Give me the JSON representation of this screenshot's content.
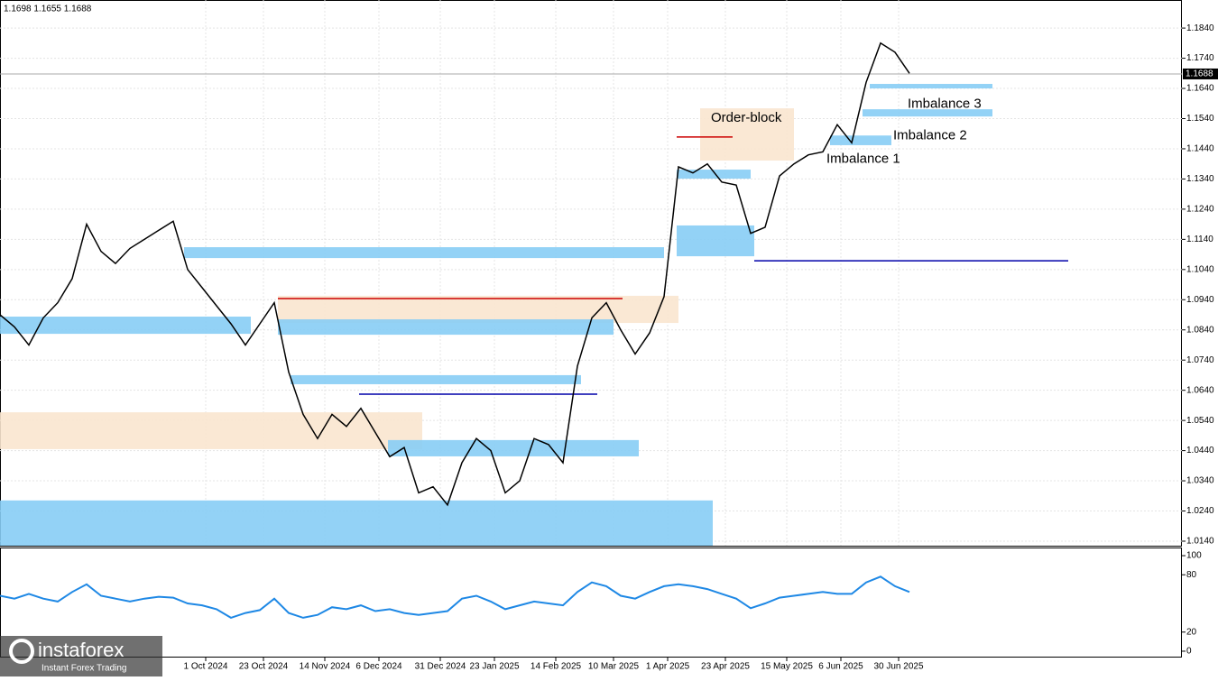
{
  "header": "1.1698 1.1655 1.1688",
  "logo": {
    "name": "instaforex",
    "tagline": "Instant Forex Trading"
  },
  "chart_data": [
    {
      "type": "line",
      "last_price": 1.1688,
      "color": "#000000",
      "x": [
        0,
        4,
        8,
        12,
        16,
        20,
        24,
        28,
        32,
        36,
        40,
        44,
        48,
        52,
        56,
        60,
        64,
        68,
        72,
        76,
        80,
        84,
        88,
        92,
        96,
        100,
        104,
        108,
        112,
        116,
        120,
        124,
        128,
        132,
        136,
        140,
        144,
        148,
        152,
        156,
        160,
        164,
        168,
        172,
        176,
        180,
        184,
        188,
        192,
        196,
        200,
        204,
        208,
        212,
        216,
        220,
        224,
        228,
        232,
        236,
        240,
        244,
        248,
        252
      ],
      "values": [
        1.089,
        1.085,
        1.079,
        1.088,
        1.093,
        1.101,
        1.119,
        1.11,
        1.106,
        1.111,
        1.114,
        1.117,
        1.12,
        1.104,
        1.098,
        1.092,
        1.086,
        1.079,
        1.086,
        1.093,
        1.07,
        1.056,
        1.048,
        1.056,
        1.052,
        1.058,
        1.05,
        1.042,
        1.045,
        1.03,
        1.032,
        1.026,
        1.04,
        1.048,
        1.044,
        1.03,
        1.034,
        1.048,
        1.046,
        1.04,
        1.072,
        1.088,
        1.093,
        1.084,
        1.076,
        1.083,
        1.095,
        1.138,
        1.136,
        1.139,
        1.133,
        1.132,
        1.116,
        1.118,
        1.135,
        1.139,
        1.142,
        1.143,
        1.152,
        1.146,
        1.166,
        1.179,
        1.176,
        1.169
      ],
      "xlim": [
        0,
        327.5
      ],
      "ylim": [
        1.0125,
        1.1927
      ],
      "xticks": [
        {
          "value": 57,
          "label": "1 Oct 2024"
        },
        {
          "value": 73,
          "label": "23 Oct 2024"
        },
        {
          "value": 90,
          "label": "14 Nov 2024"
        },
        {
          "value": 105,
          "label": "6 Dec 2024"
        },
        {
          "value": 122,
          "label": "31 Dec 2024"
        },
        {
          "value": 137,
          "label": "23 Jan 2025"
        },
        {
          "value": 154,
          "label": "14 Feb 2025"
        },
        {
          "value": 170,
          "label": "10 Mar 2025"
        },
        {
          "value": 185,
          "label": "1 Apr 2025"
        },
        {
          "value": 201,
          "label": "23 Apr 2025"
        },
        {
          "value": 218,
          "label": "15 May 2025"
        },
        {
          "value": 233,
          "label": "6 Jun 2025"
        },
        {
          "value": 249,
          "label": "30 Jun 2025"
        }
      ],
      "yticks": [
        {
          "value": 1.184,
          "label": "1.1840"
        },
        {
          "value": 1.174,
          "label": "1.1740"
        },
        {
          "value": 1.164,
          "label": "1.1640"
        },
        {
          "value": 1.154,
          "label": "1.1540"
        },
        {
          "value": 1.144,
          "label": "1.1440"
        },
        {
          "value": 1.134,
          "label": "1.1340"
        },
        {
          "value": 1.124,
          "label": "1.1240"
        },
        {
          "value": 1.114,
          "label": "1.1140"
        },
        {
          "value": 1.104,
          "label": "1.1040"
        },
        {
          "value": 1.094,
          "label": "1.0940"
        },
        {
          "value": 1.084,
          "label": "1.0840"
        },
        {
          "value": 1.074,
          "label": "1.0740"
        },
        {
          "value": 1.064,
          "label": "1.0640"
        },
        {
          "value": 1.054,
          "label": "1.0540"
        },
        {
          "value": 1.044,
          "label": "1.0440"
        },
        {
          "value": 1.034,
          "label": "1.0340"
        },
        {
          "value": 1.024,
          "label": "1.0240"
        },
        {
          "value": 1.014,
          "label": "1.0140"
        }
      ],
      "grid": true,
      "zones": [
        {
          "x": [
            0,
            197.5
          ],
          "range": [
            1.0125,
            1.0275
          ],
          "color": "#87cdf5"
        },
        {
          "x": [
            0,
            117
          ],
          "range": [
            1.0445,
            1.0567
          ],
          "color": "#f9e6cf"
        },
        {
          "x": [
            51,
            184
          ],
          "range": [
            1.1078,
            1.1114
          ],
          "color": "#87cdf5"
        },
        {
          "x": [
            0,
            69.5
          ],
          "range": [
            1.0827,
            1.0884
          ],
          "color": "#87cdf5"
        },
        {
          "x": [
            77,
            188
          ],
          "range": [
            1.0863,
            1.0953
          ],
          "color": "#f9e6cf"
        },
        {
          "x": [
            77,
            170
          ],
          "range": [
            1.0824,
            1.0875
          ],
          "color": "#87cdf5"
        },
        {
          "x": [
            80.5,
            161
          ],
          "range": [
            1.066,
            1.069
          ],
          "color": "#87cdf5"
        },
        {
          "x": [
            107.5,
            177
          ],
          "range": [
            1.0421,
            1.0475
          ],
          "color": "#87cdf5"
        },
        {
          "x": [
            194,
            220
          ],
          "range": [
            1.1401,
            1.1574
          ],
          "color": "#f9e6cf"
        },
        {
          "x": [
            187.5,
            209
          ],
          "range": [
            1.1084,
            1.1186
          ],
          "color": "#87cdf5"
        },
        {
          "x": [
            187.5,
            208
          ],
          "range": [
            1.1341,
            1.1371
          ],
          "color": "#87cdf5"
        },
        {
          "x": [
            230,
            247
          ],
          "range": [
            1.1452,
            1.1484
          ],
          "color": "#87cdf5"
        },
        {
          "x": [
            239,
            275
          ],
          "range": [
            1.1547,
            1.1571
          ],
          "color": "#87cdf5"
        },
        {
          "x": [
            241,
            275
          ],
          "range": [
            1.164,
            1.1655
          ],
          "color": "#87cdf5"
        }
      ],
      "levels": [
        {
          "x": [
            209,
            296
          ],
          "price": 1.1069,
          "color": "#0000aa"
        },
        {
          "x": [
            77,
            172.5
          ],
          "price": 1.0944,
          "color": "#cc0000"
        },
        {
          "x": [
            99.5,
            165.5
          ],
          "price": 1.0627,
          "color": "#0000aa"
        },
        {
          "x": [
            187.5,
            203
          ],
          "price": 1.1479,
          "color": "#cc0000"
        }
      ],
      "annotations": [
        {
          "text": "Order-block",
          "x": 197,
          "price": 1.1542
        },
        {
          "text": "Imbalance 1",
          "x": 229,
          "price": 1.1406
        },
        {
          "text": "Imbalance 2",
          "x": 247.5,
          "price": 1.1483
        },
        {
          "text": "Imbalance 3",
          "x": 251.5,
          "price": 1.1587
        }
      ]
    },
    {
      "type": "line",
      "color": "#1e88e5",
      "x": [
        0,
        4,
        8,
        12,
        16,
        20,
        24,
        28,
        32,
        36,
        40,
        44,
        48,
        52,
        56,
        60,
        64,
        68,
        72,
        76,
        80,
        84,
        88,
        92,
        96,
        100,
        104,
        108,
        112,
        116,
        120,
        124,
        128,
        132,
        136,
        140,
        144,
        148,
        152,
        156,
        160,
        164,
        168,
        172,
        176,
        180,
        184,
        188,
        192,
        196,
        200,
        204,
        208,
        212,
        216,
        220,
        224,
        228,
        232,
        236,
        240,
        244,
        248,
        252
      ],
      "values": [
        58,
        55,
        60,
        55,
        52,
        62,
        70,
        58,
        55,
        52,
        55,
        57,
        56,
        50,
        48,
        44,
        35,
        40,
        43,
        55,
        40,
        35,
        38,
        46,
        44,
        48,
        42,
        44,
        40,
        38,
        40,
        42,
        55,
        58,
        52,
        44,
        48,
        52,
        50,
        48,
        62,
        72,
        68,
        58,
        55,
        62,
        68,
        70,
        68,
        65,
        60,
        55,
        45,
        50,
        56,
        58,
        60,
        62,
        60,
        60,
        72,
        78,
        68,
        62
      ],
      "xlim": [
        0,
        327.5
      ],
      "ylim": [
        -5.7,
        105.7
      ],
      "yticks": [
        100,
        80,
        20,
        0
      ]
    }
  ]
}
